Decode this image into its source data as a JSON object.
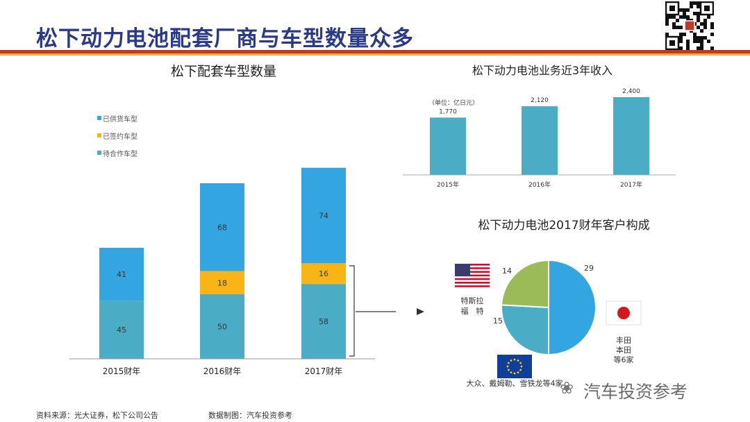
{
  "page": {
    "title": "松下动力电池配套厂商与车型数量众多",
    "footer": {
      "source": "资料来源：光大证券，松下公司公告",
      "credit": "数据制图：汽车投资参考"
    },
    "watermark": "汽车投资参考"
  },
  "chart_data": [
    {
      "type": "bar",
      "stacked": true,
      "title": "松下配套车型数量",
      "categories": [
        "2015财年",
        "2016财年",
        "2017财年"
      ],
      "series": [
        {
          "name": "待合作车型",
          "color": "#4bacc6",
          "values": [
            45,
            50,
            58
          ]
        },
        {
          "name": "已签约车型",
          "color": "#f9b516",
          "values": [
            0,
            18,
            16
          ]
        },
        {
          "name": "已供货车型",
          "color": "#33a5e0",
          "values": [
            41,
            68,
            74
          ]
        }
      ],
      "legend_order": [
        "已供货车型",
        "已签约车型",
        "待合作车型"
      ],
      "ylim": [
        0,
        150
      ],
      "legend": "top-left",
      "grid": false
    },
    {
      "type": "bar",
      "title": "松下动力电池业务近3年收入",
      "unit_label": "（单位：亿日元）",
      "categories": [
        "2015年",
        "2016年",
        "2017年"
      ],
      "values": [
        1770,
        2120,
        2400
      ],
      "value_labels": [
        "1,770",
        "2,120",
        "2,400"
      ],
      "color": "#4bacc6",
      "ylim": [
        0,
        2600
      ],
      "grid": false
    },
    {
      "type": "pie",
      "title": "松下动力电池2017财年客户构成",
      "values": [
        29,
        15,
        14
      ],
      "colors": [
        "#33a5e0",
        "#4bacc6",
        "#9bbb59"
      ],
      "customers": [
        {
          "label_lines": [
            "丰田",
            "本田",
            "等6家"
          ],
          "flag": "japan-flag"
        },
        {
          "label_lines": [
            "大众、戴姆勒、雪铁龙等4家"
          ],
          "flag": "eu-flag"
        },
        {
          "label_lines": [
            "特斯拉",
            "福　特"
          ],
          "flag": "us-flag"
        }
      ]
    }
  ]
}
